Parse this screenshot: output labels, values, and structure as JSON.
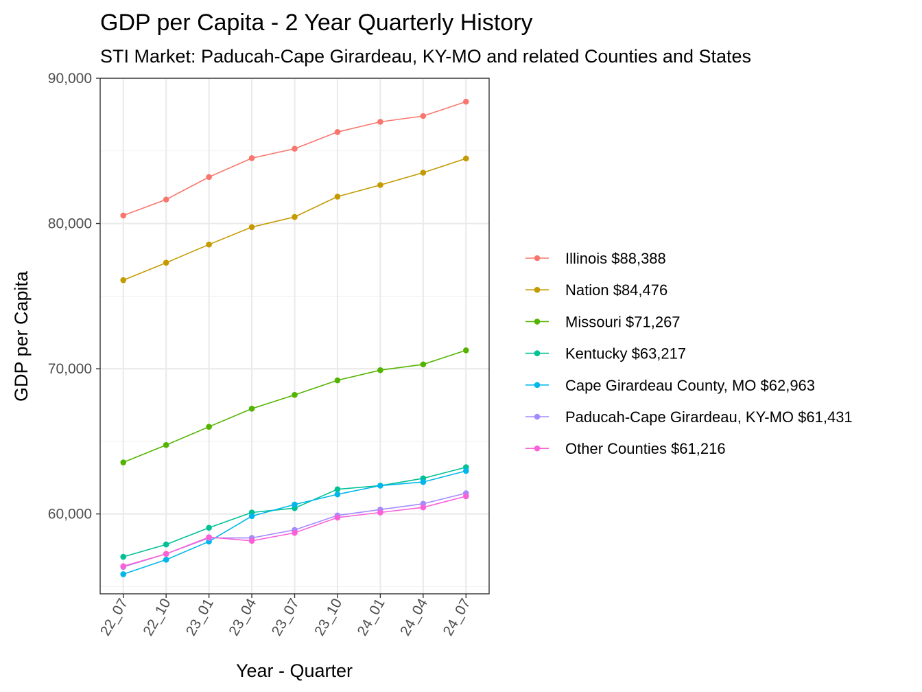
{
  "chart_data": {
    "type": "line",
    "title": "GDP per Capita - 2 Year Quarterly History",
    "subtitle": "STI Market: Paducah-Cape Girardeau, KY-MO and related Counties and States",
    "xlabel": "Year - Quarter",
    "ylabel": "GDP per Capita",
    "categories": [
      "22_07",
      "22_10",
      "23_01",
      "23_04",
      "23_07",
      "23_10",
      "24_01",
      "24_04",
      "24_07"
    ],
    "ylim": [
      54500,
      90000
    ],
    "yticks": [
      60000,
      70000,
      80000,
      90000
    ],
    "ytick_labels": [
      "60,000",
      "70,000",
      "80,000",
      "90,000"
    ],
    "grid": true,
    "legend_position": "right",
    "series": [
      {
        "name": "Illinois $88,388",
        "color": "#F8766D",
        "values": [
          80550,
          81650,
          83200,
          84500,
          85150,
          86300,
          87000,
          87400,
          88388
        ]
      },
      {
        "name": "Nation $84,476",
        "color": "#C49A00",
        "values": [
          76100,
          77300,
          78550,
          79750,
          80450,
          81850,
          82650,
          83500,
          84476
        ]
      },
      {
        "name": "Missouri $71,267",
        "color": "#53B400",
        "values": [
          63550,
          64750,
          66000,
          67250,
          68200,
          69200,
          69900,
          70300,
          71267
        ]
      },
      {
        "name": "Kentucky $63,217",
        "color": "#00C094",
        "values": [
          57050,
          57900,
          59050,
          60100,
          60400,
          61700,
          61950,
          62450,
          63217
        ]
      },
      {
        "name": "Cape Girardeau County, MO $62,963",
        "color": "#00B6EB",
        "values": [
          55850,
          56850,
          58100,
          59850,
          60650,
          61350,
          61950,
          62200,
          62963
        ]
      },
      {
        "name": "Paducah-Cape Girardeau, KY-MO $61,431",
        "color": "#A58AFF",
        "values": [
          56350,
          57250,
          58350,
          58350,
          58900,
          59900,
          60300,
          60700,
          61431
        ]
      },
      {
        "name": "Other Counties $61,216",
        "color": "#FB61D7",
        "values": [
          56400,
          57250,
          58400,
          58150,
          58700,
          59750,
          60100,
          60450,
          61216
        ]
      }
    ]
  }
}
